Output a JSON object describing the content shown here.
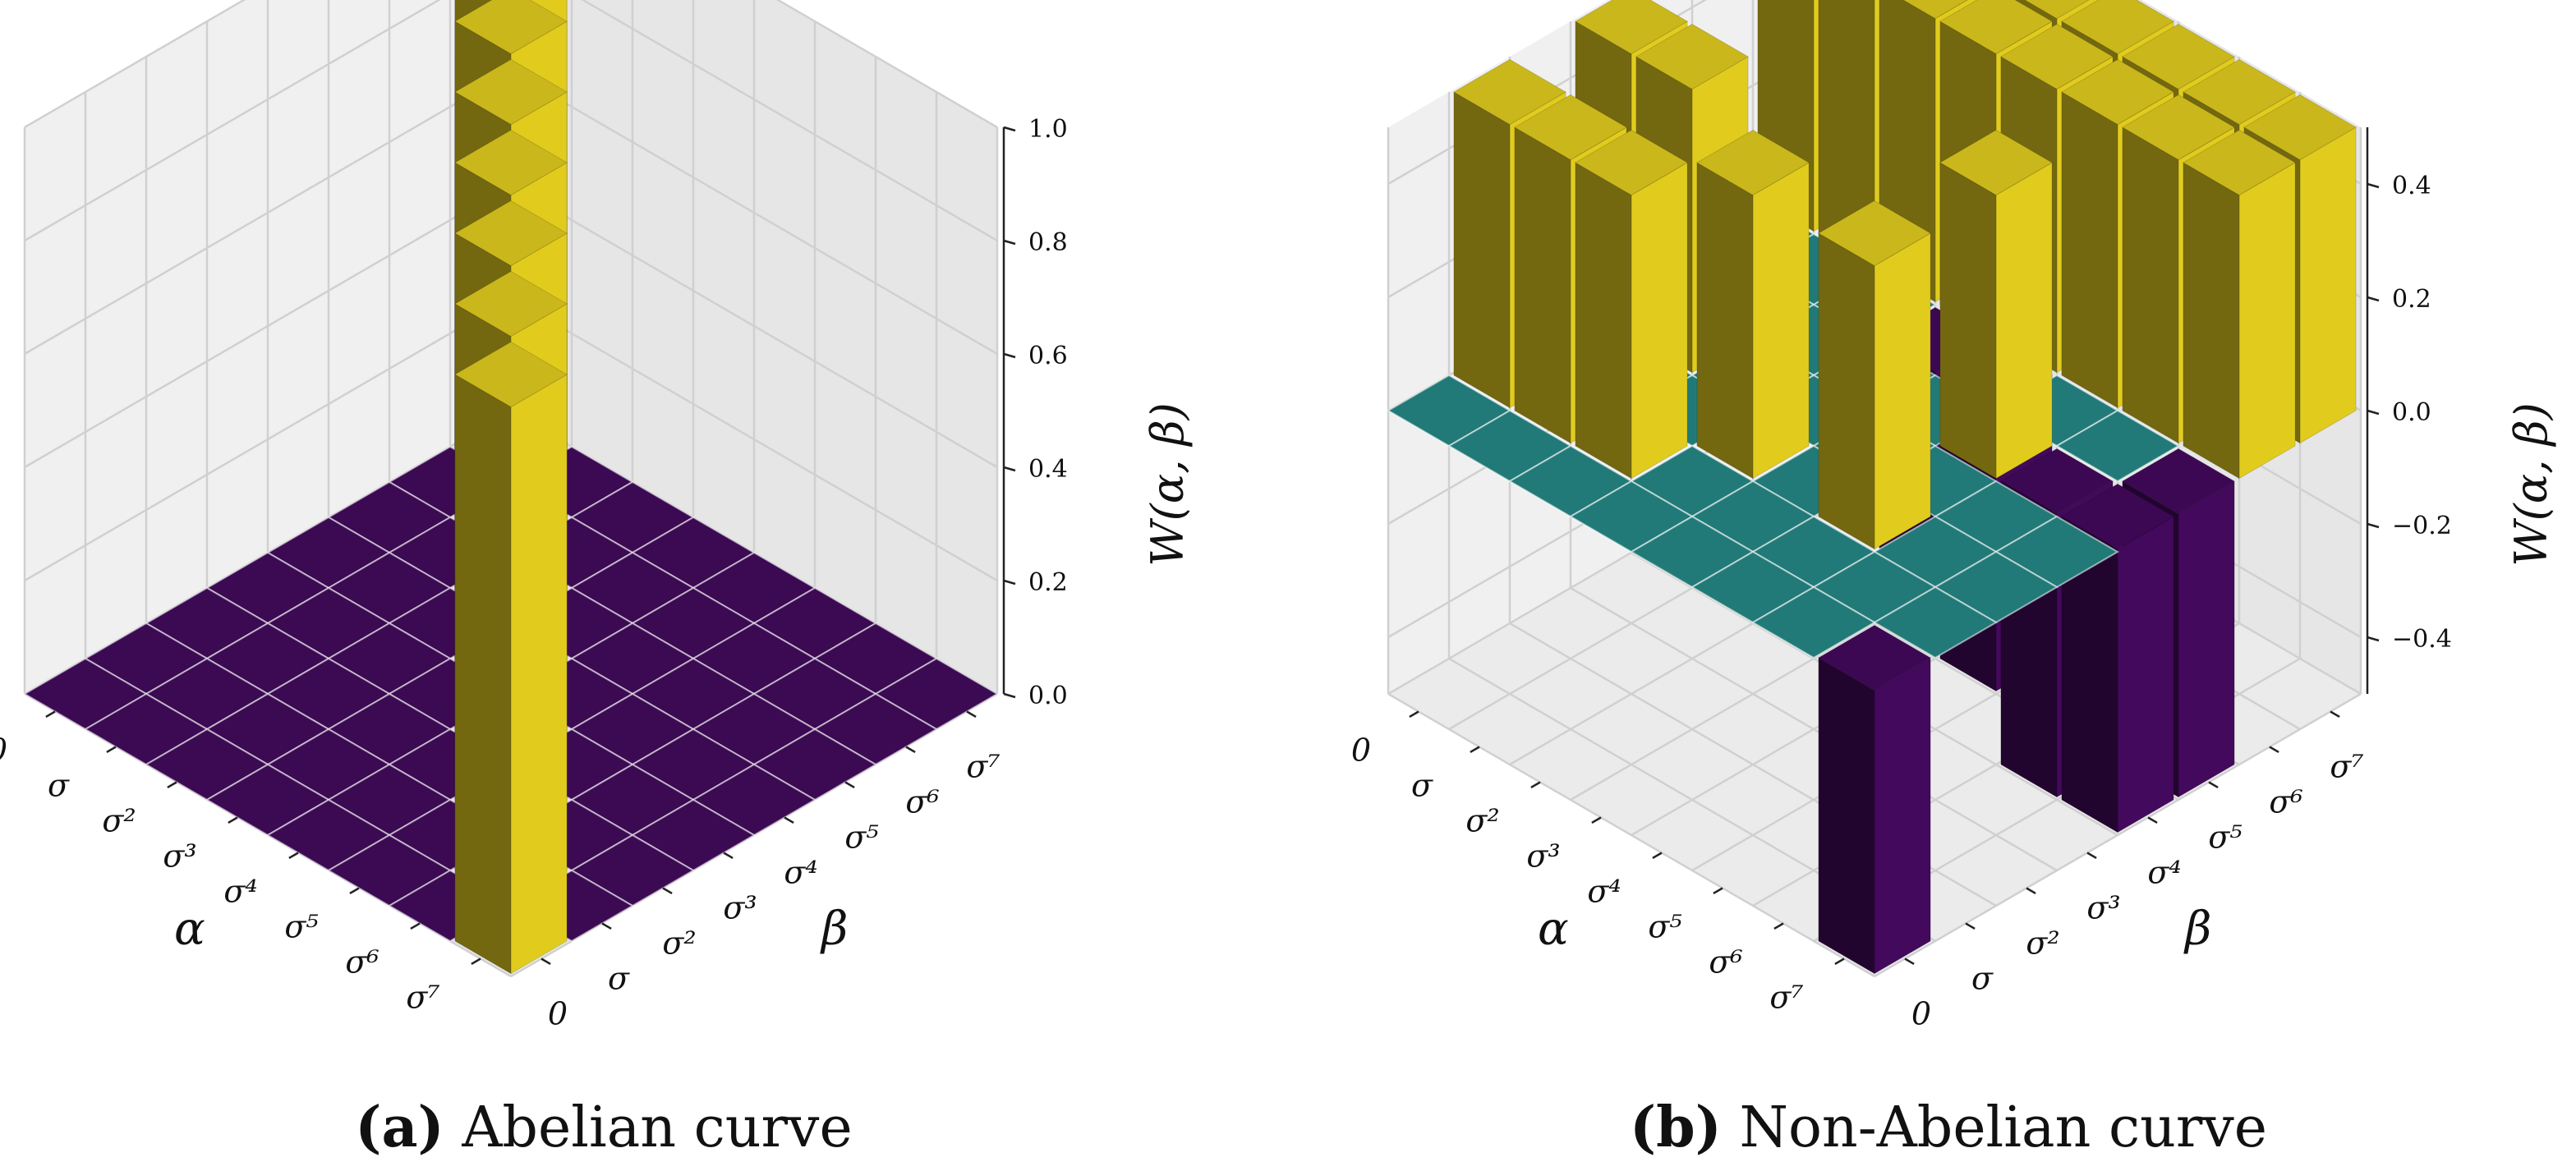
{
  "figure": {
    "labels": [
      "0",
      "σ",
      "σ²",
      "σ³",
      "σ⁴",
      "σ⁵",
      "σ⁶",
      "σ⁷"
    ]
  },
  "chart_data": [
    {
      "type": "bar3d",
      "panel_letter": "(a)",
      "caption": "Abelian curve",
      "xlabel": "α",
      "ylabel": "β",
      "zlabel": "W(α, β)",
      "zlim": [
        0,
        1.0
      ],
      "zticks": [
        "0.0",
        "0.2",
        "0.4",
        "0.6",
        "0.8",
        "1.0"
      ],
      "zticks_values": [
        0,
        0.2,
        0.4,
        0.6,
        0.8,
        1.0
      ],
      "colors": {
        "positive": "#e6d01f",
        "negative": "#44095e",
        "zero": "#3b0a52"
      },
      "nonzero": [
        {
          "alpha": 0,
          "beta": 7,
          "value": 1.0
        },
        {
          "alpha": 1,
          "beta": 6,
          "value": 1.0
        },
        {
          "alpha": 2,
          "beta": 5,
          "value": 1.0
        },
        {
          "alpha": 3,
          "beta": 4,
          "value": 1.0
        },
        {
          "alpha": 4,
          "beta": 3,
          "value": 1.0
        },
        {
          "alpha": 5,
          "beta": 2,
          "value": 1.0
        },
        {
          "alpha": 6,
          "beta": 1,
          "value": 1.0
        },
        {
          "alpha": 7,
          "beta": 0,
          "value": 1.0
        }
      ]
    },
    {
      "type": "bar3d",
      "panel_letter": "(b)",
      "caption": "Non-Abelian curve",
      "xlabel": "α",
      "ylabel": "β",
      "zlabel": "W(α, β)",
      "zlim": [
        -0.5,
        0.5
      ],
      "zticks": [
        "−0.4",
        "−0.2",
        "0.0",
        "0.2",
        "0.4"
      ],
      "zticks_values": [
        -0.4,
        -0.2,
        0.0,
        0.2,
        0.4
      ],
      "colors": {
        "positive": "#e6d01f",
        "negative": "#44095e",
        "zero": "#217a78"
      },
      "nonzero": [
        {
          "alpha": 0,
          "beta": 7,
          "value": 0.5
        },
        {
          "alpha": 1,
          "beta": 7,
          "value": 0.5
        },
        {
          "alpha": 2,
          "beta": 7,
          "value": 0.5
        },
        {
          "alpha": 3,
          "beta": 7,
          "value": 0.5
        },
        {
          "alpha": 4,
          "beta": 7,
          "value": 0.5
        },
        {
          "alpha": 5,
          "beta": 7,
          "value": 0.5
        },
        {
          "alpha": 6,
          "beta": 7,
          "value": 0.5
        },
        {
          "alpha": 7,
          "beta": 7,
          "value": 0.5
        },
        {
          "alpha": 0,
          "beta": 6,
          "value": 0.5
        },
        {
          "alpha": 1,
          "beta": 6,
          "value": 0.5
        },
        {
          "alpha": 2,
          "beta": 6,
          "value": 0.5
        },
        {
          "alpha": 3,
          "beta": 6,
          "value": 0.5
        },
        {
          "alpha": 4,
          "beta": 6,
          "value": 0.5
        },
        {
          "alpha": 5,
          "beta": 6,
          "value": 0.5
        },
        {
          "alpha": 6,
          "beta": 6,
          "value": 0.5
        },
        {
          "alpha": 7,
          "beta": 6,
          "value": 0.5
        },
        {
          "alpha": 0,
          "beta": 3,
          "value": 0.5
        },
        {
          "alpha": 1,
          "beta": 3,
          "value": 0.5
        },
        {
          "alpha": 0,
          "beta": 1,
          "value": 0.5
        },
        {
          "alpha": 1,
          "beta": 1,
          "value": 0.5
        },
        {
          "alpha": 2,
          "beta": 1,
          "value": 0.5
        },
        {
          "alpha": 3,
          "beta": 2,
          "value": 0.5
        },
        {
          "alpha": 5,
          "beta": 2,
          "value": 0.5
        },
        {
          "alpha": 5,
          "beta": 4,
          "value": 0.5
        },
        {
          "alpha": 7,
          "beta": 0,
          "value": -0.5
        },
        {
          "alpha": 6,
          "beta": 4,
          "value": -0.5
        },
        {
          "alpha": 7,
          "beta": 4,
          "value": -0.5
        },
        {
          "alpha": 7,
          "beta": 5,
          "value": -0.5
        },
        {
          "alpha": 4,
          "beta": 5,
          "value": -0.5
        },
        {
          "alpha": 3,
          "beta": 5,
          "value": -0.5
        }
      ]
    }
  ]
}
